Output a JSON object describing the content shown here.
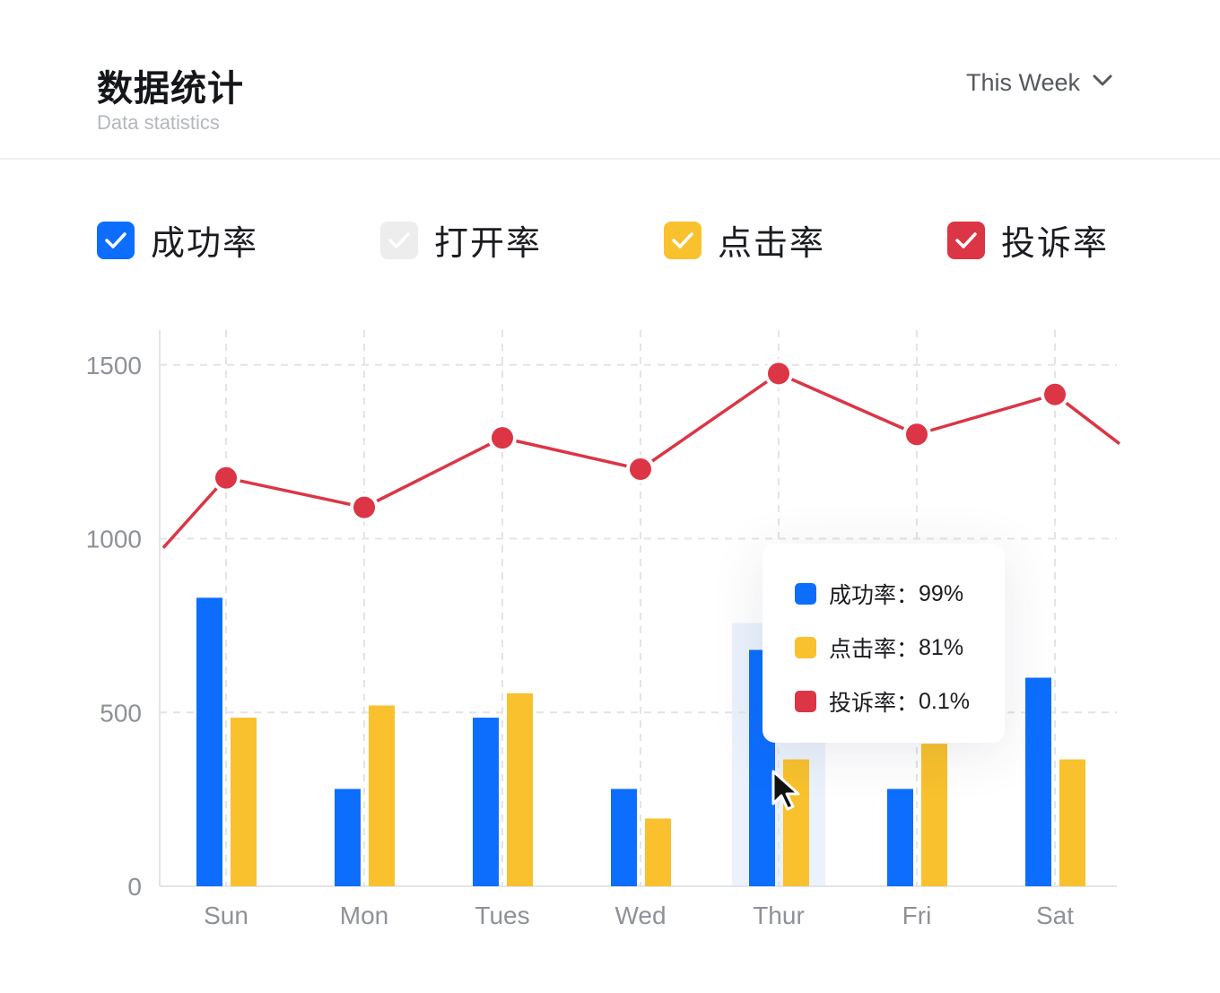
{
  "header": {
    "title": "数据统计",
    "subtitle": "Data statistics",
    "range_label": "This Week"
  },
  "legend": [
    {
      "label": "成功率",
      "color": "#0d6efd",
      "checked": true
    },
    {
      "label": "打开率",
      "color": "#ededed",
      "checked": true
    },
    {
      "label": "点击率",
      "color": "#f8c12d",
      "checked": true
    },
    {
      "label": "投诉率",
      "color": "#dc3545",
      "checked": true
    }
  ],
  "tooltip": {
    "category": "Thur",
    "rows": [
      {
        "label": "成功率",
        "value": "99%",
        "color": "#0d6efd"
      },
      {
        "label": "点击率",
        "value": "81%",
        "color": "#f8c12d"
      },
      {
        "label": "投诉率",
        "value": "0.1%",
        "color": "#dc3545"
      }
    ]
  },
  "chart_data": {
    "type": "bar",
    "categories": [
      "Sun",
      "Mon",
      "Tues",
      "Wed",
      "Thur",
      "Fri",
      "Sat"
    ],
    "ylim": [
      0,
      1600
    ],
    "yticks": [
      0,
      500,
      1000,
      1500
    ],
    "grid": true,
    "series": [
      {
        "name": "成功率",
        "type": "bar",
        "color": "#0d6efd",
        "values": [
          830,
          280,
          485,
          280,
          680,
          280,
          600
        ]
      },
      {
        "name": "点击率",
        "type": "bar",
        "color": "#f8c12d",
        "values": [
          485,
          520,
          555,
          195,
          365,
          410,
          365
        ]
      },
      {
        "name": "投诉率",
        "type": "line",
        "color": "#dc3545",
        "values": [
          1175,
          1090,
          1290,
          1200,
          1475,
          1300,
          1415
        ]
      }
    ]
  }
}
